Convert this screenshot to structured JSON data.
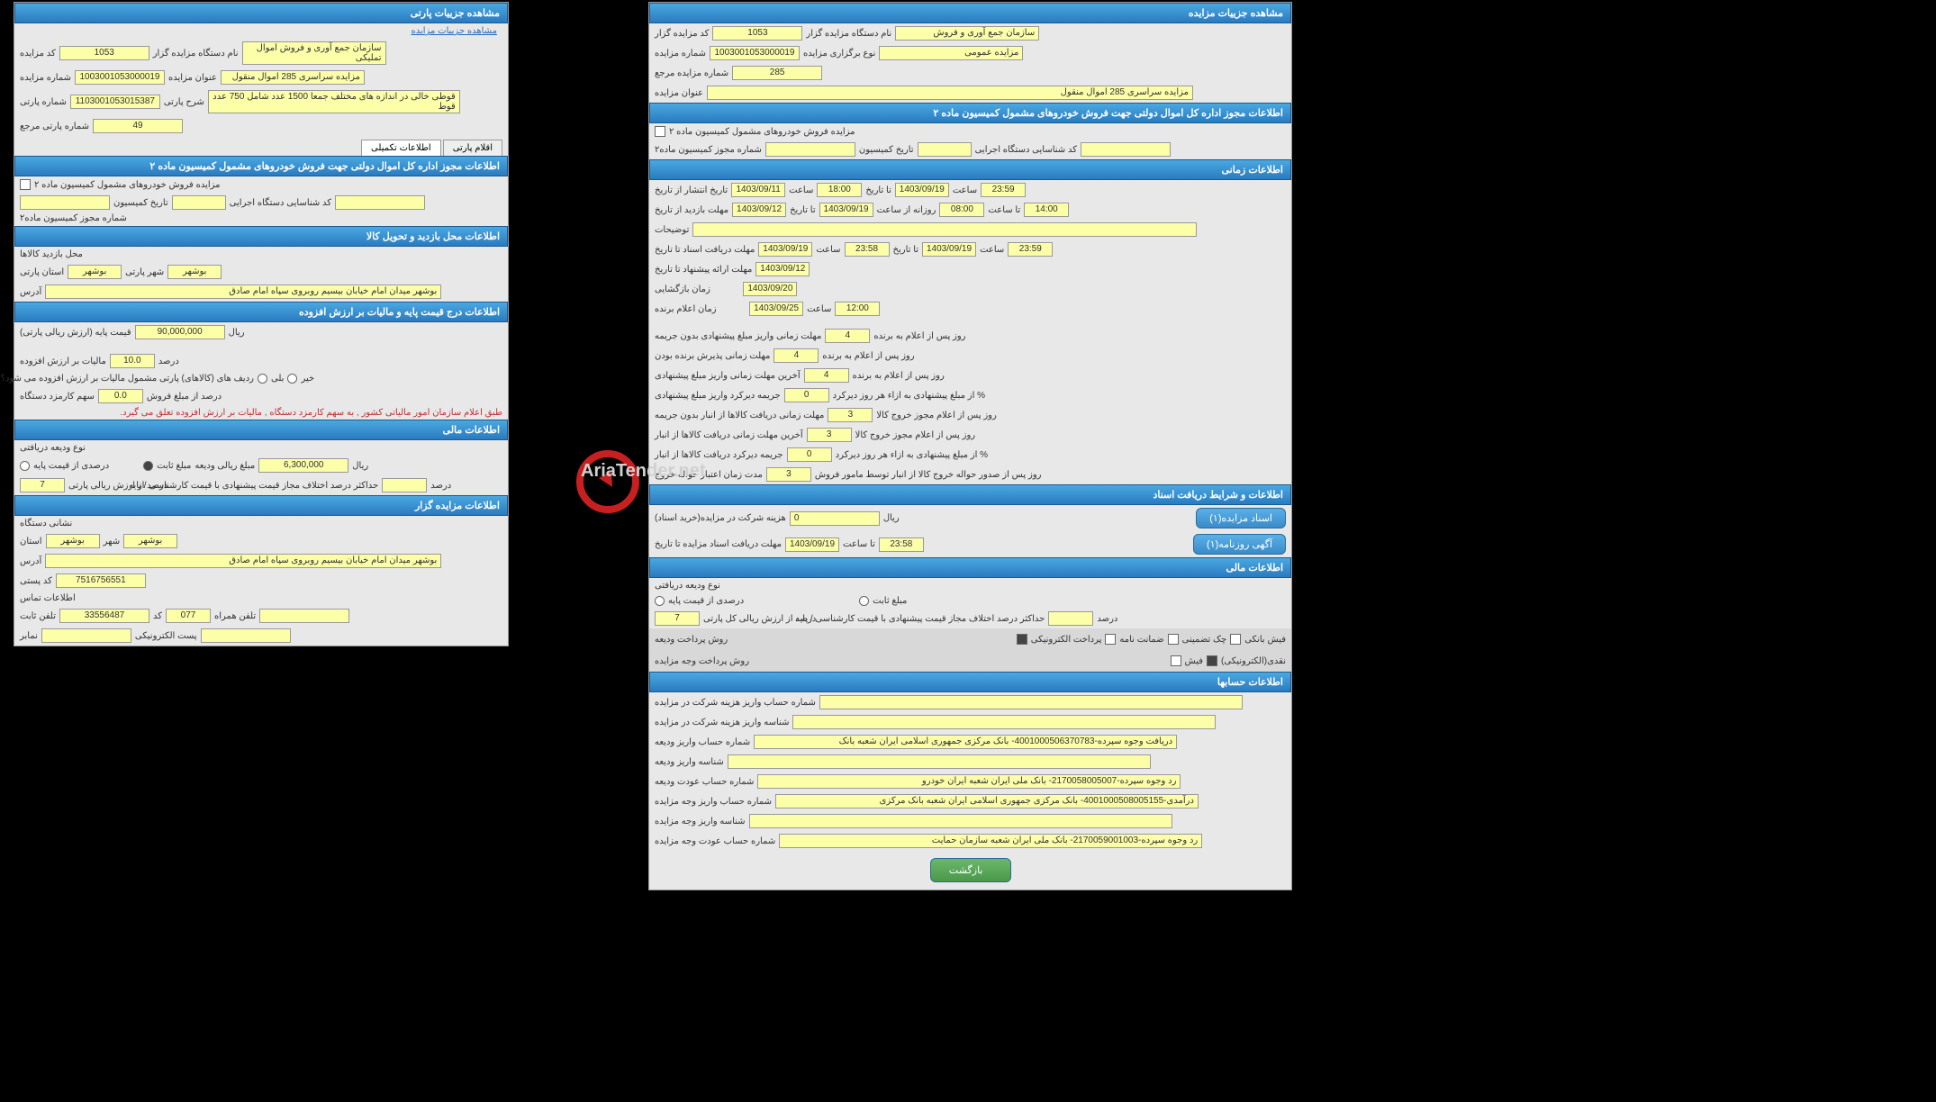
{
  "left": {
    "h1": "مشاهده جزییات پارتی",
    "link": "مشاهده جزییات مزایده",
    "f": {
      "kod_mazayede": "کد مزایده",
      "kod_mazayede_v": "1053",
      "nam_dastgah": "نام دستگاه مزایده گزار",
      "nam_dastgah_v": "سازمان جمع آوری و فروش اموال تملیکی",
      "sh_mazayede": "شماره مزایده",
      "sh_mazayede_v": "1003001053000019",
      "onvan": "عنوان مزایده",
      "onvan_v": "مزایده سراسری 285 اموال منقول",
      "sh_parti": "شماره پارتی",
      "sh_parti_v": "1103001053015387",
      "sharh_parti": "شرح پارتی",
      "sharh_parti_v": "قوطی خالی در اندازه های مختلف جمعا 1500 عدد شامل 750 عدد قوط",
      "sh_parti_marja": "شماره پارتی مرجع",
      "sh_parti_marja_v": "49"
    },
    "tabs": {
      "t1": "اقلام پارتی",
      "t2": "اطلاعات تکمیلی"
    },
    "h2": "اطلاعات مجوز اداره کل اموال دولتی جهت فروش خودروهای مشمول کمیسیون ماده ۲",
    "s2": {
      "chk": "مزایده فروش خودروهای مشمول کمیسیون ماده ۲",
      "sh_mojaz": "شماره مجوز کمیسیون ماده۲",
      "tar_kom": "تاریخ کمیسیون",
      "kod_sh": "کد شناسایی دستگاه اجرایی"
    },
    "h3": "اطلاعات محل بازدید و تحویل کالا",
    "s3": {
      "mahal": "محل بازدید کالاها",
      "ostan": "استان پارتی",
      "ostan_v": "بوشهر",
      "shahr": "شهر پارتی",
      "shahr_v": "بوشهر",
      "adres": "آدرس",
      "adres_v": "بوشهر میدان امام خیابان بیسیم روبروی سپاه امام صادق"
    },
    "h4": "اطلاعات درج قیمت پایه و مالیات بر ارزش افزوده",
    "s4": {
      "gheymat": "قیمت پایه (ارزش ریالی پارتی)",
      "gheymat_v": "90,000,000",
      "rial": "ریال",
      "maliat": "مالیات بر ارزش افزوده",
      "maliat_v": "10.0",
      "darsad": "درصد",
      "radif": "ردیف های (کالاهای) پارتی مشمول مالیات بر ارزش افزوده می شود؟",
      "bali": "بلی",
      "kheyr": "خیر",
      "sahm": "سهم کارمزد دستگاه",
      "sahm_v": "0.0",
      "darsad2": "درصد از مبلغ فروش",
      "note": "طبق اعلام سازمان امور مالیاتی کشور , به سهم کارمزد دستگاه , مالیات بر ارزش افزوده تعلق می گیرد."
    },
    "h5": "اطلاعات مالی",
    "s5": {
      "noe": "نوع ودیعه دریافتی",
      "darsadi": "درصدی از قیمت پایه",
      "sabet": "مبلغ ثابت",
      "darsad_arz": "درصد از ارزش ریالی پارتی",
      "darsad_arz_v": "7",
      "mablag": "مبلغ ریالی ودیعه",
      "mablag_v": "6,300,000",
      "rial2": "ریال",
      "hadaksar": "حداکثر درصد اختلاف مجاز قیمت پیشنهادی با قیمت کارشناسی / پایه",
      "hdk_darsad": "درصد"
    },
    "h6": "اطلاعات مزایده گزار",
    "s6": {
      "nesh": "نشانی دستگاه",
      "ostan2": "استان",
      "ostan2_v": "بوشهر",
      "shahr2": "شهر",
      "shahr2_v": "بوشهر",
      "adres2": "آدرس",
      "adres2_v": "بوشهر میدان امام خیابان بیسیم روبروی سپاه امام صادق",
      "kodp": "کد پستی",
      "kodp_v": "7516756551",
      "tamas": "اطلاعات تماس",
      "tel": "تلفن ثابت",
      "tel_v": "33556487",
      "kod": "کد",
      "kod_v": "077",
      "hamrah": "تلفن همراه",
      "namabar": "نمابر",
      "email": "پست الکترونیکی"
    }
  },
  "right": {
    "h1": "مشاهده جزییات مزایده",
    "f": {
      "kod": "کد مزایده گزار",
      "kod_v": "1053",
      "nam": "نام دستگاه مزایده گزار",
      "nam_v": "سازمان جمع آوری و فروش",
      "sh": "شماره مزایده",
      "sh_v": "1003001053000019",
      "noe": "نوع برگزاری مزایده",
      "noe_v": "مزایده عمومی",
      "marja": "شماره مزایده مرجع",
      "marja_v": "285",
      "onvan": "عنوان مزایده",
      "onvan_v": "مزایده سراسری 285 اموال منقول"
    },
    "h2": "اطلاعات مجوز اداره کل اموال دولتی جهت فروش خودروهای مشمول کمیسیون ماده ۲",
    "s2": {
      "chk": "مزایده فروش خودروهای مشمول کمیسیون ماده ۲",
      "sh_mojaz": "شماره مجوز کمیسیون ماده۲",
      "tar": "تاریخ کمیسیون",
      "kod_sh": "کد شناسایی دستگاه اجرایی"
    },
    "h3": "اطلاعات زمانی",
    "s3": {
      "enteshar": "تاریخ انتشار از تاریخ",
      "d1": "1403/09/11",
      "saat": "ساعت",
      "t1": "18:00",
      "ta_tar": "تا تاریخ",
      "d2": "1403/09/19",
      "t2": "23:59",
      "bazdid": "مهلت بازدید از تاریخ",
      "d3": "1403/09/12",
      "t3": "14:00",
      "d4": "1403/09/19",
      "roozane": "روزانه از ساعت",
      "t4": "08:00",
      "ta_saat": "تا ساعت",
      "tozih": "توضیحات",
      "asnad": "مهلت دریافت اسناد تا تاریخ",
      "d5": "1403/09/19",
      "t5": "23:58",
      "t6": "23:59",
      "pishnahad": "مهلت ارائه پیشنهاد تا تاریخ",
      "d6": "1403/09/12",
      "bazg": "زمان بازگشایی",
      "d7": "1403/09/20",
      "barande": "زمان اعلام برنده",
      "d8": "1403/09/25",
      "t7": "12:00"
    },
    "s3b": {
      "l1": "مهلت زمانی واریز مبلغ پیشنهادی بدون جریمه",
      "v1": "4",
      "u1": "روز پس از اعلام به برنده",
      "l2": "مهلت زمانی پذیرش برنده بودن",
      "v2": "4",
      "u2": "روز پس از اعلام به برنده",
      "l3": "آخرین مهلت زمانی واریز مبلغ پیشنهادی",
      "v3": "4",
      "u3": "روز پس از اعلام به برنده",
      "l4": "جریمه دیرکرد واریز مبلغ پیشنهادی",
      "v4": "0",
      "u4": "% از مبلغ پیشنهادی به ازاء هر روز دیرکرد",
      "l5": "مهلت زمانی دریافت کالاها از انبار بدون جریمه",
      "v5": "3",
      "u5": "روز پس از اعلام مجوز خروج کالا",
      "l6": "آخرین مهلت زمانی دریافت کالاها از انبار",
      "v6": "3",
      "u6": "روز پس از اعلام مجوز خروج کالا",
      "l7": "جریمه دیرکرد دریافت کالاها از انبار",
      "v7": "0",
      "u7": "% از مبلغ پیشنهادی به ازاء هر روز دیرکرد",
      "l8": "مدت زمان اعتبار حواله خروج",
      "v8": "3",
      "u8": "روز پس از صدور حواله خروج کالا از انبار توسط مامور فروش"
    },
    "h4": "اطلاعات و شرایط دریافت اسناد",
    "s4": {
      "hazine": "هزینه شرکت در مزایده(خرید اسناد)",
      "hazine_v": "0",
      "rial": "ریال",
      "mohlat": "مهلت دریافت اسناد مزایده تا تاریخ",
      "d": "1403/09/19",
      "ta_saat": "تا ساعت",
      "t": "23:58",
      "btn1": "اسناد مزایده(۱)",
      "btn2": "آگهی روزنامه(۱)"
    },
    "h5": "اطلاعات مالی",
    "s5": {
      "noe": "نوع ودیعه دریافتی",
      "darsadi": "درصدی از قیمت پایه",
      "sabet": "مبلغ ثابت",
      "darv": "7",
      "darl": "درصد از ارزش ریالی کل پارتی",
      "hdk": "حداکثر درصد اختلاف مجاز قیمت پیشنهادی با قیمت کارشناسی / پایه",
      "darsad": "درصد",
      "ravesh1": "روش پرداخت ودیعه",
      "o1": "پرداخت الکترونیکی",
      "o2": "ضمانت نامه",
      "o3": "چک تضمینی",
      "o4": "فیش بانکی",
      "ravesh2": "روش پرداخت وجه مزایده",
      "o5": "فیش",
      "o6": "نقدی(الکترونیکی)"
    },
    "h6": "اطلاعات حسابها",
    "s6": {
      "l1": "شماره حساب واریز هزینه شرکت در مزایده",
      "l2": "شناسه واریز هزینه شرکت در مزایده",
      "l3": "شماره حساب واریز ودیعه",
      "v3": "دریافت وجوه سپرده-4001000506370783- بانک مرکزی جمهوری اسلامی ایران شعبه بانک",
      "l4": "شناسه واریز ودیعه",
      "l5": "شماره حساب عودت ودیعه",
      "v5": "رد وجوه سپرده-2170058005007- بانک ملی ایران شعبه ایران خودرو",
      "l6": "شماره حساب واریز وجه مزایده",
      "v6": "درآمدی-4001000508005155- بانک مرکزی جمهوری اسلامی ایران شعبه بانک مرکزی",
      "l7": "شناسه واریز وجه مزایده",
      "l8": "شماره حساب عودت وجه مزایده",
      "v8": "رد وجوه سپرده-2170059001003- بانک ملی ایران شعبه سازمان حمایت"
    },
    "return": "بازگشت"
  },
  "logo": {
    "main": "AriaTender",
    "net": ".net",
    "sub": ""
  }
}
